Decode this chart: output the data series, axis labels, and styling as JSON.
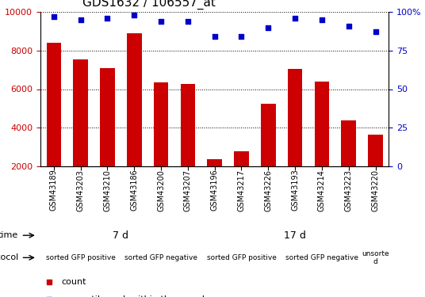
{
  "title": "GDS1632 / 106557_at",
  "samples": [
    "GSM43189",
    "GSM43203",
    "GSM43210",
    "GSM43186",
    "GSM43200",
    "GSM43207",
    "GSM43196",
    "GSM43217",
    "GSM43226",
    "GSM43193",
    "GSM43214",
    "GSM43223",
    "GSM43220"
  ],
  "counts": [
    8400,
    7550,
    7100,
    8900,
    6350,
    6250,
    2380,
    2800,
    5250,
    7050,
    6380,
    4380,
    3650
  ],
  "percentiles": [
    97,
    95,
    96,
    98,
    94,
    94,
    84,
    84,
    90,
    96,
    95,
    91,
    87
  ],
  "bar_color": "#cc0000",
  "dot_color": "#0000cc",
  "ylim_left": [
    2000,
    10000
  ],
  "ylim_right": [
    0,
    100
  ],
  "yticks_left": [
    2000,
    4000,
    6000,
    8000,
    10000
  ],
  "yticks_right": [
    0,
    25,
    50,
    75,
    100
  ],
  "background_color": "#ffffff",
  "tick_color_left": "#cc0000",
  "tick_color_right": "#0000cc",
  "legend_count_color": "#cc0000",
  "legend_pct_color": "#0000cc",
  "tick_bg_color": "#c8c8c8",
  "time_spans": [
    {
      "start": 0,
      "end": 5,
      "label": "7 d",
      "color": "#bbffbb"
    },
    {
      "start": 6,
      "end": 12,
      "label": "17 d",
      "color": "#55ee55"
    }
  ],
  "proto_spans": [
    {
      "start": 0,
      "end": 2,
      "label": "sorted GFP positive",
      "color": "#ffaaff"
    },
    {
      "start": 3,
      "end": 5,
      "label": "sorted GFP negative",
      "color": "#dd88dd"
    },
    {
      "start": 6,
      "end": 8,
      "label": "sorted GFP positive",
      "color": "#ffaaff"
    },
    {
      "start": 9,
      "end": 11,
      "label": "sorted GFP negative",
      "color": "#dd88dd"
    },
    {
      "start": 12,
      "end": 12,
      "label": "unsorte\nd",
      "color": "#dd88dd"
    }
  ]
}
